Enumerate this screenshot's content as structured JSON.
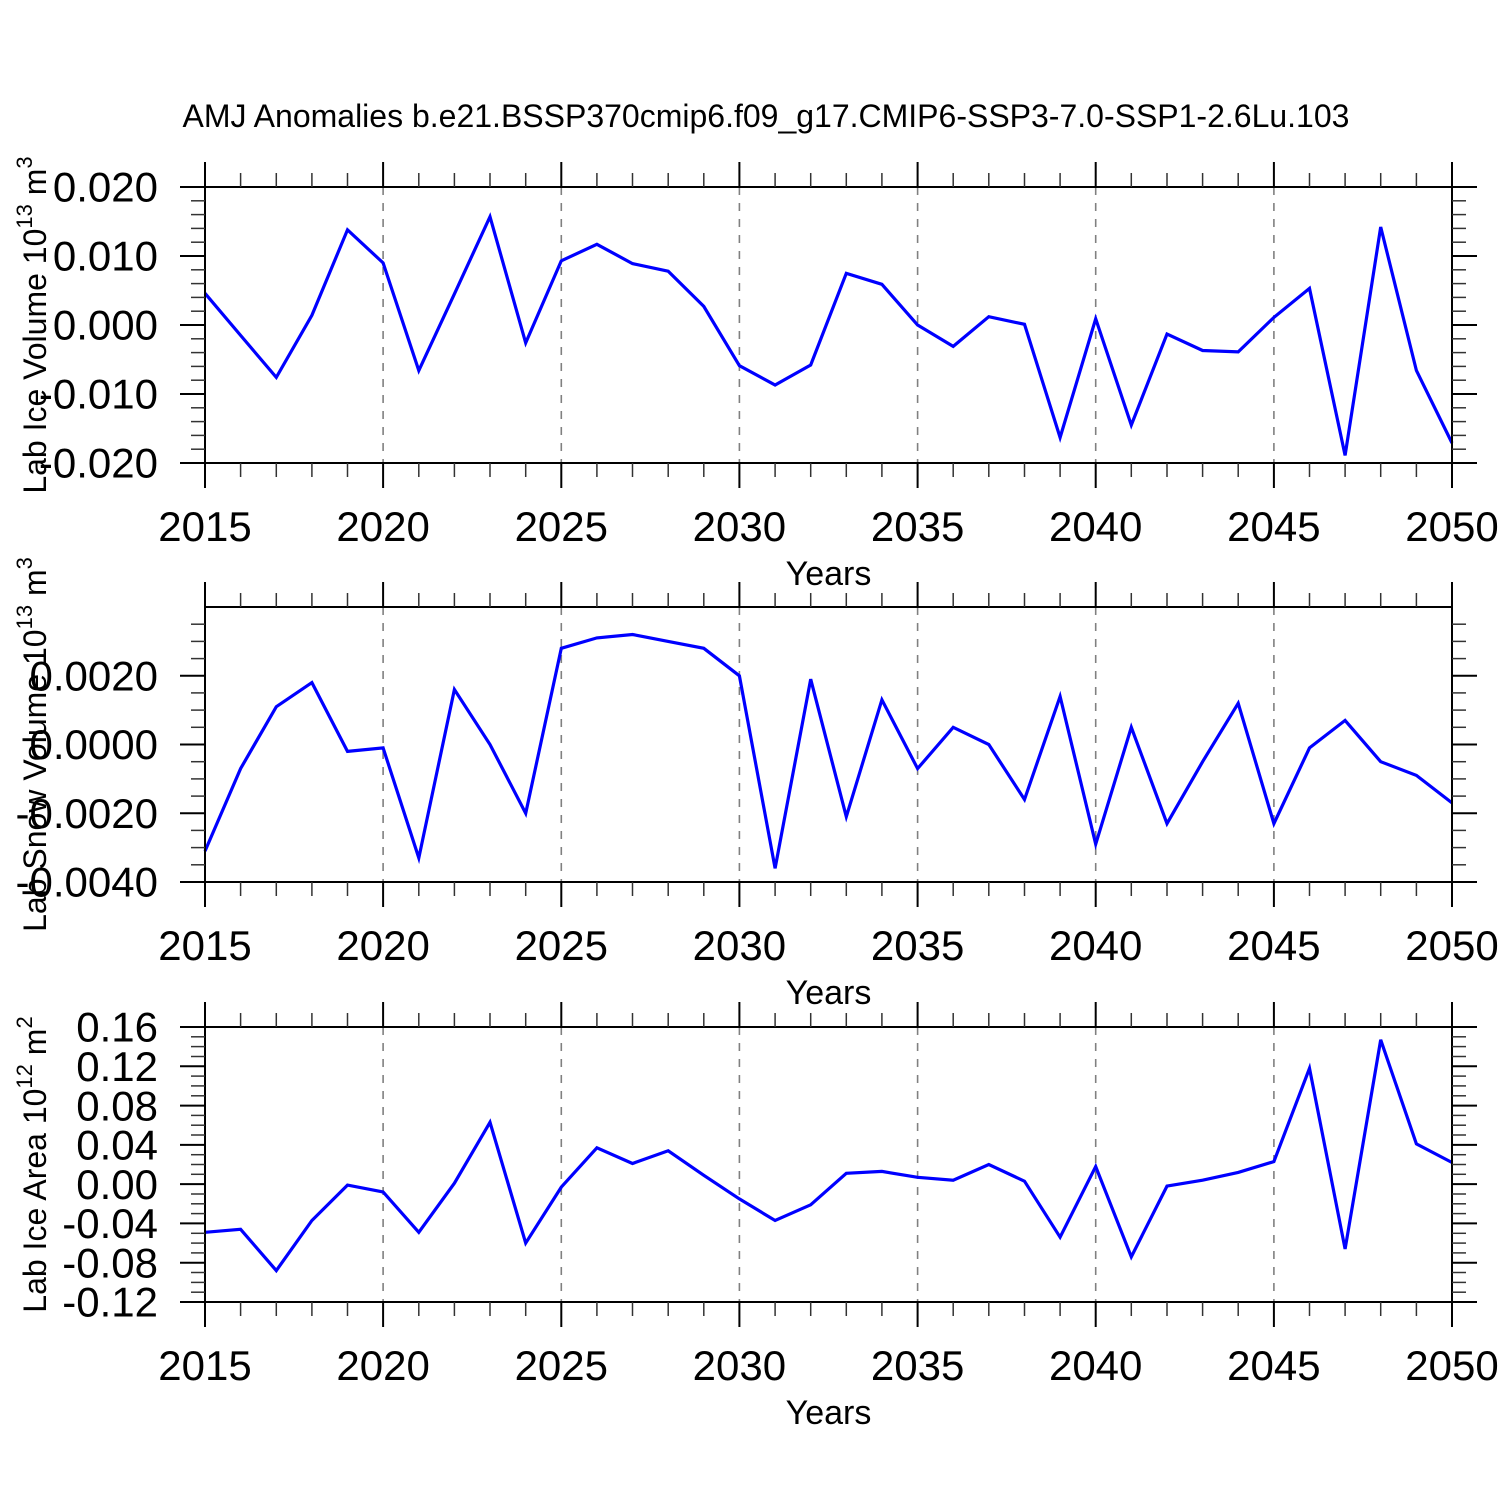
{
  "title": "AMJ Anomalies b.e21.BSSP370cmip6.f09_g17.CMIP6-SSP3-7.0-SSP1-2.6Lu.103",
  "xlabel": "Years",
  "colors": {
    "line": "#0000ff",
    "grid": "#808080",
    "frame": "#000000",
    "minor_tick": "#333333"
  },
  "x_axis": {
    "min": 2015,
    "max": 2050,
    "major_step": 5,
    "minor_step": 1,
    "gridlines": [
      2020,
      2025,
      2030,
      2035,
      2040,
      2045
    ],
    "tick_values": [
      2015,
      2020,
      2025,
      2030,
      2035,
      2040,
      2045,
      2050
    ],
    "tick_labels": [
      "2015",
      "2020",
      "2025",
      "2030",
      "2035",
      "2040",
      "2045",
      "2050"
    ]
  },
  "chart_data": [
    {
      "id": "lab-ice-volume",
      "type": "line",
      "ylabel": "Lab Ice Volume 10^13 m^3",
      "ylabel_parts": [
        {
          "t": "Lab Ice Volume 10"
        },
        {
          "t": "13",
          "sup": true
        },
        {
          "t": " m"
        },
        {
          "t": "3",
          "sup": true
        }
      ],
      "xlabel": "Years",
      "ylim": [
        -0.02,
        0.02
      ],
      "y_minor_step": 0.002,
      "yticks": [
        {
          "v": 0.02,
          "label": "0.020"
        },
        {
          "v": 0.01,
          "label": "0.010"
        },
        {
          "v": 0.0,
          "label": "0.000"
        },
        {
          "v": -0.01,
          "label": "-0.010"
        },
        {
          "v": -0.02,
          "label": "-0.020"
        }
      ],
      "x": [
        2015,
        2016,
        2017,
        2018,
        2019,
        2020,
        2021,
        2022,
        2023,
        2024,
        2025,
        2026,
        2027,
        2028,
        2029,
        2030,
        2031,
        2032,
        2033,
        2034,
        2035,
        2036,
        2037,
        2038,
        2039,
        2040,
        2041,
        2042,
        2043,
        2044,
        2045,
        2046,
        2047,
        2048,
        2049,
        2050
      ],
      "values": [
        0.0046,
        -0.0015,
        -0.0076,
        0.0014,
        0.0138,
        0.009,
        -0.0066,
        0.0045,
        0.0157,
        -0.0026,
        0.0093,
        0.0117,
        0.0089,
        0.0078,
        0.0027,
        -0.0059,
        -0.0087,
        -0.0058,
        0.0075,
        0.0059,
        0.0,
        -0.0031,
        0.0012,
        0.0001,
        -0.0163,
        0.0009,
        -0.0145,
        -0.0013,
        -0.0037,
        -0.0039,
        0.0011,
        0.0053,
        -0.0189,
        0.0142,
        -0.0066,
        -0.0171
      ]
    },
    {
      "id": "lab-snow-volume",
      "type": "line",
      "ylabel": "Lab Snow Volume 10^13 m^3",
      "ylabel_parts": [
        {
          "t": "Lab Snow Volume 10"
        },
        {
          "t": "13",
          "sup": true
        },
        {
          "t": " m"
        },
        {
          "t": "3",
          "sup": true
        }
      ],
      "xlabel": "Years",
      "ylim": [
        -0.004,
        0.004
      ],
      "y_minor_step": 0.0005,
      "yticks": [
        {
          "v": 0.002,
          "label": "0.0020"
        },
        {
          "v": 0.0,
          "label": "0.0000"
        },
        {
          "v": -0.002,
          "label": "-0.0020"
        },
        {
          "v": -0.004,
          "label": "-0.0040"
        }
      ],
      "x": [
        2015,
        2016,
        2017,
        2018,
        2019,
        2020,
        2021,
        2022,
        2023,
        2024,
        2025,
        2026,
        2027,
        2028,
        2029,
        2030,
        2031,
        2032,
        2033,
        2034,
        2035,
        2036,
        2037,
        2038,
        2039,
        2040,
        2041,
        2042,
        2043,
        2044,
        2045,
        2046,
        2047,
        2048,
        2049,
        2050
      ],
      "values": [
        -0.0031,
        -0.0007,
        0.0011,
        0.0018,
        -0.0002,
        -0.0001,
        -0.0033,
        0.0016,
        0.0,
        -0.002,
        0.0028,
        0.0031,
        0.0032,
        0.003,
        0.0028,
        0.002,
        -0.0036,
        0.0019,
        -0.0021,
        0.0013,
        -0.0007,
        0.0005,
        0.0,
        -0.0016,
        0.0014,
        -0.0029,
        0.0005,
        -0.0023,
        -0.0005,
        0.0012,
        -0.0023,
        -0.0001,
        0.0007,
        -0.0005,
        -0.0009,
        -0.0017
      ]
    },
    {
      "id": "lab-ice-area",
      "type": "line",
      "ylabel": "Lab Ice Area 10^12 m^2",
      "ylabel_parts": [
        {
          "t": "Lab Ice Area 10"
        },
        {
          "t": "12",
          "sup": true
        },
        {
          "t": " m"
        },
        {
          "t": "2",
          "sup": true
        }
      ],
      "xlabel": "Years",
      "ylim": [
        -0.12,
        0.16
      ],
      "y_minor_step": 0.01,
      "yticks": [
        {
          "v": 0.16,
          "label": "0.16"
        },
        {
          "v": 0.12,
          "label": "0.12"
        },
        {
          "v": 0.08,
          "label": "0.08"
        },
        {
          "v": 0.04,
          "label": "0.04"
        },
        {
          "v": 0.0,
          "label": "0.00"
        },
        {
          "v": -0.04,
          "label": "-0.04"
        },
        {
          "v": -0.08,
          "label": "-0.08"
        },
        {
          "v": -0.12,
          "label": "-0.12"
        }
      ],
      "x": [
        2015,
        2016,
        2017,
        2018,
        2019,
        2020,
        2021,
        2022,
        2023,
        2024,
        2025,
        2026,
        2027,
        2028,
        2029,
        2030,
        2031,
        2032,
        2033,
        2034,
        2035,
        2036,
        2037,
        2038,
        2039,
        2040,
        2041,
        2042,
        2043,
        2044,
        2045,
        2046,
        2047,
        2048,
        2049,
        2050
      ],
      "values": [
        -0.049,
        -0.046,
        -0.088,
        -0.037,
        -0.001,
        -0.008,
        -0.049,
        0.001,
        0.063,
        -0.06,
        -0.003,
        0.037,
        0.021,
        0.034,
        0.009,
        -0.015,
        -0.037,
        -0.021,
        0.011,
        0.013,
        0.007,
        0.004,
        0.02,
        0.003,
        -0.054,
        0.018,
        -0.074,
        -0.002,
        0.004,
        0.012,
        0.023,
        0.118,
        -0.066,
        0.147,
        0.041,
        0.022
      ]
    }
  ]
}
